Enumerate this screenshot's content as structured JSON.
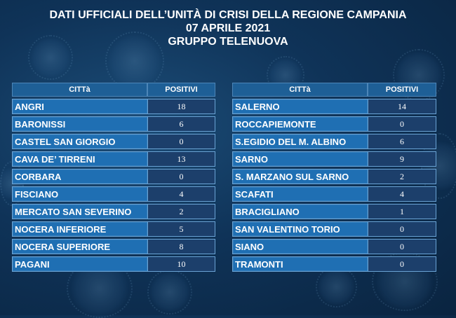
{
  "header": {
    "line1": "DATI UFFICIALI DELL’UNITÀ DI CRISI DELLA REGIONE CAMPANIA",
    "line2": "07 APRILE 2021",
    "line3": "GRUPPO TELENUOVA"
  },
  "columns": {
    "city": "CITTà",
    "positives": "POSITIVI"
  },
  "left_table": [
    {
      "city": "ANGRI",
      "value": "18"
    },
    {
      "city": "BARONISSI",
      "value": "6"
    },
    {
      "city": "CASTEL SAN GIORGIO",
      "value": "0"
    },
    {
      "city": "CAVA DE’ TIRRENI",
      "value": "13"
    },
    {
      "city": "CORBARA",
      "value": "0"
    },
    {
      "city": "FISCIANO",
      "value": "4"
    },
    {
      "city": "MERCATO SAN SEVERINO",
      "value": "2"
    },
    {
      "city": "NOCERA INFERIORE",
      "value": "5"
    },
    {
      "city": "NOCERA SUPERIORE",
      "value": "8"
    },
    {
      "city": "PAGANI",
      "value": "10"
    }
  ],
  "right_table": [
    {
      "city": "SALERNO",
      "value": "14"
    },
    {
      "city": "ROCCAPIEMONTE",
      "value": "0"
    },
    {
      "city": "S.EGIDIO DEL M. ALBINO",
      "value": "6"
    },
    {
      "city": "SARNO",
      "value": "9"
    },
    {
      "city": "S. MARZANO SUL SARNO",
      "value": "2"
    },
    {
      "city": "SCAFATI",
      "value": "4"
    },
    {
      "city": "BRACIGLIANO",
      "value": "1"
    },
    {
      "city": "SAN VALENTINO TORIO",
      "value": "0"
    },
    {
      "city": "SIANO",
      "value": "0"
    },
    {
      "city": "TRAMONTI",
      "value": "0"
    }
  ]
}
